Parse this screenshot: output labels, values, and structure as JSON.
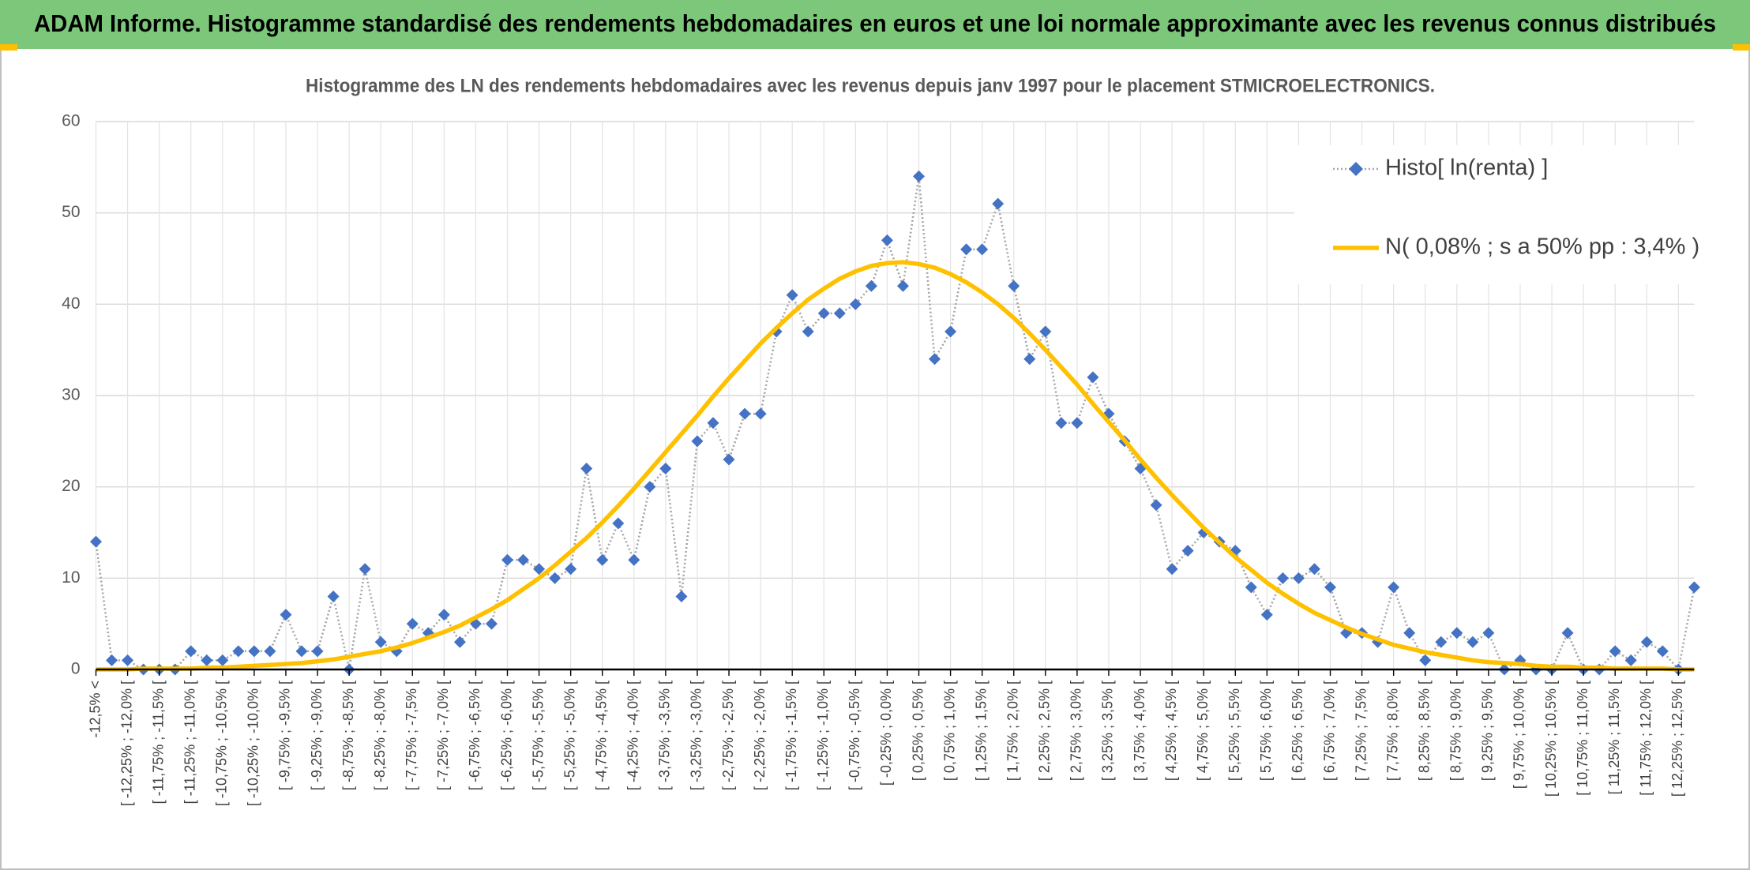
{
  "header": {
    "title": "ADAM Informe. Histogramme standardisé des rendements hebdomadaires en euros et une loi normale approximante avec les revenus connus distribués"
  },
  "chart_data": {
    "type": "line",
    "title": "Histogramme des LN des rendements hebdomadaires avec les revenus depuis janv 1997 pour le placement STMICROELECTRONICS.",
    "categories": [
      "-12,5% <",
      null,
      "[ -12,25% ; -12,0% [",
      null,
      "[ -11,75% ; -11,5% [",
      null,
      "[ -11,25% ; -11,0% [",
      null,
      "[ -10,75% ; -10,5% [",
      null,
      "[ -10,25% ; -10,0% [",
      null,
      "[ -9,75% ; -9,5% [",
      null,
      "[ -9,25% ; -9,0% [",
      null,
      "[ -8,75% ; -8,5% [",
      null,
      "[ -8,25% ; -8,0% [",
      null,
      "[ -7,75% ; -7,5% [",
      null,
      "[ -7,25% ; -7,0% [",
      null,
      "[ -6,75% ; -6,5% [",
      null,
      "[ -6,25% ; -6,0% [",
      null,
      "[ -5,75% ; -5,5% [",
      null,
      "[ -5,25% ; -5,0% [",
      null,
      "[ -4,75% ; -4,5% [",
      null,
      "[ -4,25% ; -4,0% [",
      null,
      "[ -3,75% ; -3,5% [",
      null,
      "[ -3,25% ; -3,0% [",
      null,
      "[ -2,75% ; -2,5% [",
      null,
      "[ -2,25% ; -2,0% [",
      null,
      "[ -1,75% ; -1,5% [",
      null,
      "[ -1,25% ; -1,0% [",
      null,
      "[ -0,75% ; -0,5% [",
      null,
      "[ -0,25% ; 0,0% [",
      null,
      "[ 0,25% ; 0,5% [",
      null,
      "[ 0,75% ; 1,0% [",
      null,
      "[ 1,25% ; 1,5% [",
      null,
      "[ 1,75% ; 2,0% [",
      null,
      "[ 2,25% ; 2,5% [",
      null,
      "[ 2,75% ; 3,0% [",
      null,
      "[ 3,25% ; 3,5% [",
      null,
      "[ 3,75% ; 4,0% [",
      null,
      "[ 4,25% ; 4,5% [",
      null,
      "[ 4,75% ; 5,0% [",
      null,
      "[ 5,25% ; 5,5% [",
      null,
      "[ 5,75% ; 6,0% [",
      null,
      "[ 6,25% ; 6,5% [",
      null,
      "[ 6,75% ; 7,0% [",
      null,
      "[ 7,25% ; 7,5% [",
      null,
      "[ 7,75% ; 8,0% [",
      null,
      "[ 8,25% ; 8,5% [",
      null,
      "[ 8,75% ; 9,0% [",
      null,
      "[ 9,25% ; 9,5% [",
      null,
      "[ 9,75% ; 10,0% [",
      null,
      "[ 10,25% ; 10,5% [",
      null,
      "[ 10,75% ; 11,0% [",
      null,
      "[ 11,25% ; 11,5% [",
      null,
      "[ 11,75% ; 12,0% [",
      null,
      "[ 12,25% ; 12,5% [",
      null
    ],
    "series": [
      {
        "name": "Histo[ ln(renta) ]",
        "color": "#4472c4",
        "line_color": "#a6a6a6",
        "marker": "diamond",
        "values": [
          14,
          1,
          1,
          0,
          0,
          0,
          2,
          1,
          1,
          2,
          2,
          2,
          6,
          2,
          2,
          8,
          0,
          11,
          3,
          2,
          5,
          4,
          6,
          3,
          5,
          5,
          12,
          12,
          11,
          10,
          11,
          22,
          12,
          16,
          12,
          20,
          22,
          8,
          25,
          27,
          23,
          28,
          28,
          37,
          41,
          37,
          39,
          39,
          40,
          42,
          47,
          42,
          54,
          34,
          37,
          46,
          46,
          51,
          42,
          34,
          37,
          27,
          27,
          32,
          28,
          25,
          22,
          18,
          11,
          13,
          15,
          14,
          13,
          9,
          6,
          10,
          10,
          11,
          9,
          4,
          4,
          3,
          9,
          4,
          1,
          3,
          4,
          3,
          4,
          0,
          1,
          0,
          0,
          4,
          0,
          0,
          2,
          1,
          3,
          2,
          0,
          9
        ]
      },
      {
        "name": "N( 0,08% ; s a 50% pp : 3,4% )",
        "color": "#ffc000",
        "marker": null,
        "values": [
          0.0,
          0.0,
          0.0,
          0.1,
          0.1,
          0.1,
          0.1,
          0.2,
          0.2,
          0.3,
          0.4,
          0.5,
          0.6,
          0.7,
          0.9,
          1.1,
          1.4,
          1.7,
          2.0,
          2.4,
          2.9,
          3.5,
          4.1,
          4.8,
          5.7,
          6.6,
          7.6,
          8.8,
          10.0,
          11.4,
          12.9,
          14.4,
          16.1,
          17.9,
          19.8,
          21.8,
          23.8,
          25.8,
          27.8,
          29.9,
          31.9,
          33.8,
          35.7,
          37.4,
          39.0,
          40.5,
          41.7,
          42.8,
          43.6,
          44.2,
          44.5,
          44.6,
          44.4,
          44.0,
          43.3,
          42.4,
          41.3,
          40.0,
          38.5,
          36.8,
          35.0,
          33.1,
          31.2,
          29.1,
          27.1,
          25.1,
          23.0,
          21.0,
          19.1,
          17.3,
          15.5,
          13.9,
          12.3,
          10.9,
          9.5,
          8.3,
          7.2,
          6.2,
          5.4,
          4.6,
          3.9,
          3.3,
          2.7,
          2.3,
          1.9,
          1.6,
          1.3,
          1.0,
          0.8,
          0.7,
          0.6,
          0.4,
          0.3,
          0.3,
          0.2,
          0.2,
          0.1,
          0.1,
          0.1,
          0.1,
          0.0,
          0.0
        ]
      }
    ],
    "ylim": [
      0,
      60
    ],
    "yticks": [
      0,
      10,
      20,
      30,
      40,
      50,
      60
    ],
    "grid": true,
    "legend": "top-right"
  }
}
